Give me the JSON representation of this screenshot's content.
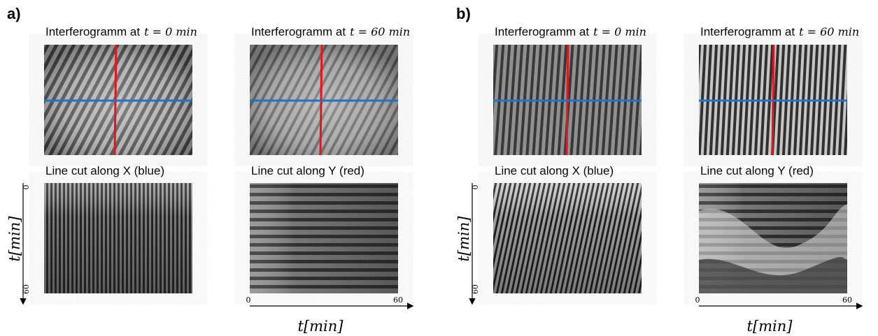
{
  "panels": [
    {
      "label": "a)",
      "interferograms": [
        {
          "title": "Interferogramm at",
          "time": "t = 0 min"
        },
        {
          "title": "Interferogramm at",
          "time": "t = 60 min"
        }
      ],
      "line_cuts": [
        {
          "title": "Line cut along X (blue)",
          "axis_start": "0",
          "axis_end": "60",
          "axis_label": "t[min]"
        },
        {
          "title": "Line cut along Y (red)",
          "axis_start": "0",
          "axis_end": "60",
          "axis_label": "t[min]"
        }
      ]
    },
    {
      "label": "b)",
      "interferograms": [
        {
          "title": "Interferogramm at",
          "time": "t = 0 min"
        },
        {
          "title": "Interferogramm at",
          "time": "t = 60 min"
        }
      ],
      "line_cuts": [
        {
          "title": "Line cut along X (blue)",
          "axis_start": "0",
          "axis_end": "60",
          "axis_label": "t[min]"
        },
        {
          "title": "Line cut along Y (red)",
          "axis_start": "0",
          "axis_end": "60",
          "axis_label": "t[min]"
        }
      ]
    }
  ]
}
